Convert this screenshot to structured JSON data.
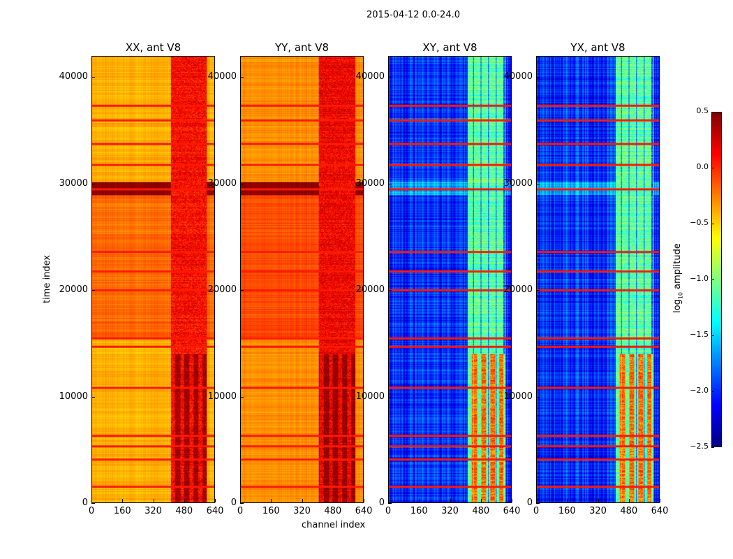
{
  "figure_title": "2015-04-12 0.0-24.0",
  "chart_data": {
    "type": "heatmap",
    "xlabel": "channel index",
    "ylabel": "time index",
    "xlim": [
      0,
      640
    ],
    "ylim": [
      0,
      42000
    ],
    "xticks": [
      "0",
      "160",
      "320",
      "480",
      "640"
    ],
    "yticks": [
      "0",
      "10000",
      "20000",
      "30000",
      "40000"
    ],
    "panels": [
      {
        "title": "XX, ant V8",
        "base": -0.4,
        "band_channels": [
          410,
          600
        ],
        "band_level": 0.1
      },
      {
        "title": "YY, ant V8",
        "base": -0.3,
        "band_channels": [
          405,
          600
        ],
        "band_level": 0.15
      },
      {
        "title": "XY, ant V8",
        "base": -2.0,
        "band_channels": [
          410,
          610
        ],
        "band_level": -1.1
      },
      {
        "title": "YX, ant V8",
        "base": -2.0,
        "band_channels": [
          410,
          610
        ],
        "band_level": -1.1
      }
    ],
    "flagged_time_rows": [
      1500,
      4100,
      5300,
      6300,
      10800,
      14700,
      15500,
      20000,
      21800,
      23600,
      29500,
      31800,
      33800,
      36000,
      37400
    ],
    "colorbar": {
      "label": "log10 amplitude",
      "label_main": "log",
      "label_sub": "10",
      "label_rest": " amplitude",
      "colormap": "jet",
      "clim": [
        -2.5,
        0.5
      ],
      "ticks": [
        "0.5",
        "0.0",
        "−0.5",
        "−1.0",
        "−1.5",
        "−2.0",
        "−2.5"
      ]
    }
  }
}
